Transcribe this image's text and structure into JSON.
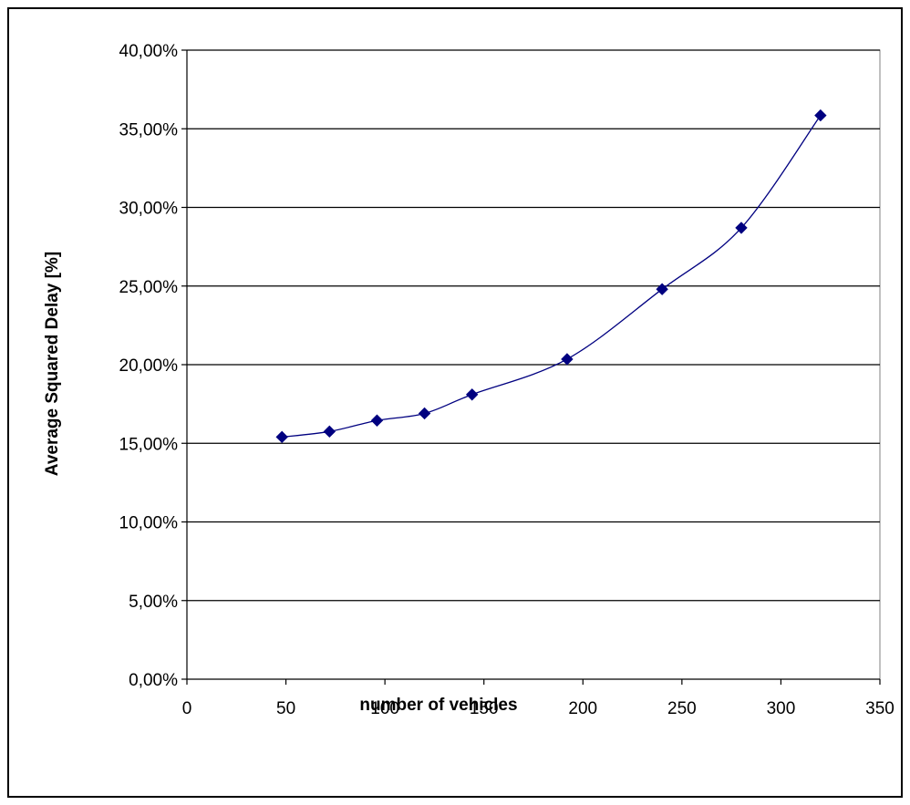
{
  "chart_data": {
    "type": "line",
    "title": "",
    "xlabel": "number of vehicles",
    "ylabel": "Average Squared Delay   [%]",
    "xlim": [
      0,
      350
    ],
    "ylim": [
      0,
      40
    ],
    "x_ticks": [
      0,
      50,
      100,
      150,
      200,
      250,
      300,
      350
    ],
    "x_tick_labels": [
      "0",
      "50",
      "100",
      "150",
      "200",
      "250",
      "300",
      "350"
    ],
    "y_ticks": [
      0,
      5,
      10,
      15,
      20,
      25,
      30,
      35,
      40
    ],
    "y_tick_labels": [
      "0,00%",
      "5,00%",
      "10,00%",
      "15,00%",
      "20,00%",
      "25,00%",
      "30,00%",
      "35,00%",
      "40,00%"
    ],
    "grid": "horizontal",
    "legend": "none",
    "series": [
      {
        "x": [
          48,
          72,
          96,
          120,
          144,
          192,
          240,
          280,
          320
        ],
        "values": [
          15.4,
          15.75,
          16.45,
          16.9,
          18.1,
          20.35,
          24.8,
          28.7,
          35.85
        ],
        "color": "#000080",
        "marker": "diamond"
      }
    ]
  }
}
